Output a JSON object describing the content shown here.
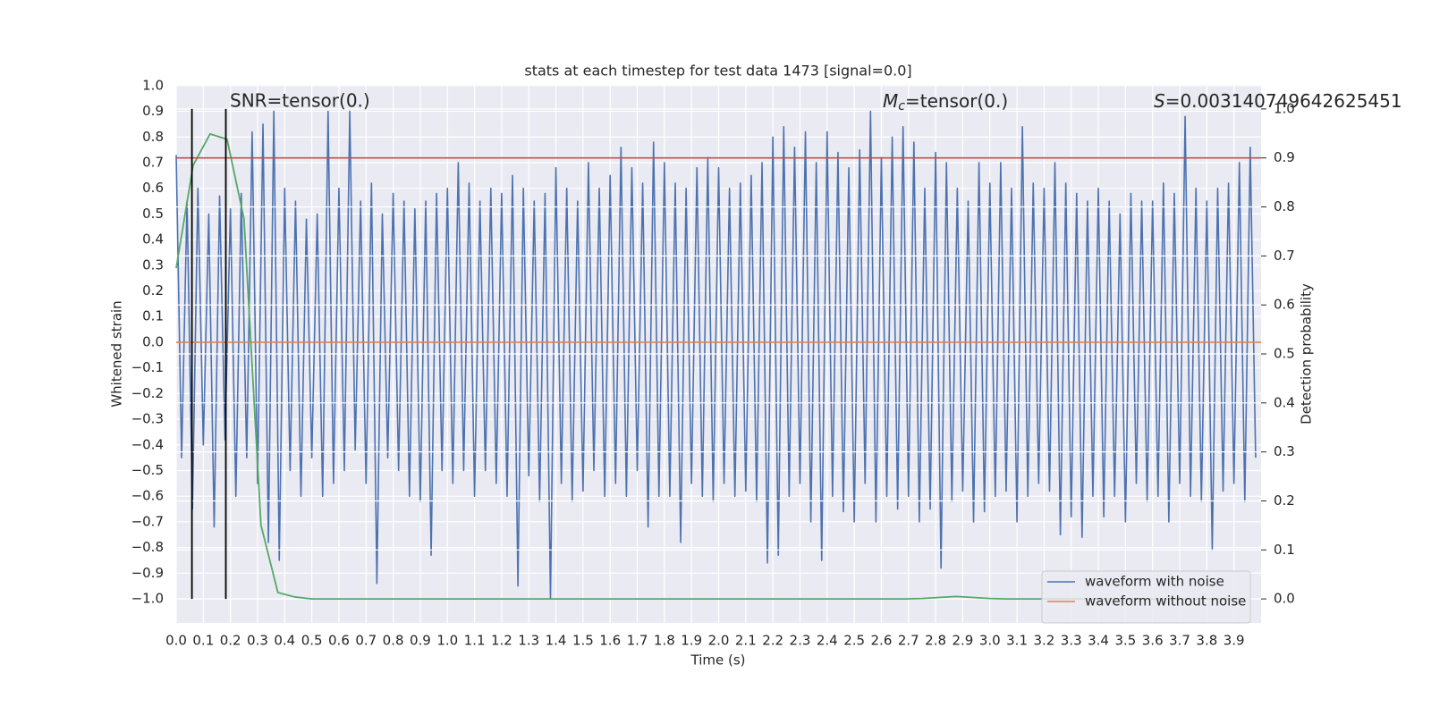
{
  "chart_data": {
    "type": "line",
    "title": "stats at each timestep for test data 1473 [signal=0.0]",
    "xlabel": "Time (s)",
    "ylabel": "Whitened strain",
    "y2label": "Detection probability",
    "grid": true,
    "legend": "lower right",
    "xlim": [
      0,
      4.0
    ],
    "ylim": [
      -1.094,
      1.003
    ],
    "y2lim": [
      -0.049,
      1.049
    ],
    "xticks": [
      {
        "value": 0,
        "label": "0.0"
      },
      {
        "value": 0.1,
        "label": "0.1"
      },
      {
        "value": 0.2,
        "label": "0.2"
      },
      {
        "value": 0.3,
        "label": "0.3"
      },
      {
        "value": 0.4,
        "label": "0.4"
      },
      {
        "value": 0.5,
        "label": "0.5"
      },
      {
        "value": 0.6,
        "label": "0.6"
      },
      {
        "value": 0.7,
        "label": "0.7"
      },
      {
        "value": 0.8,
        "label": "0.8"
      },
      {
        "value": 0.9,
        "label": "0.9"
      },
      {
        "value": 1,
        "label": "1.0"
      },
      {
        "value": 1.1,
        "label": "1.1"
      },
      {
        "value": 1.2,
        "label": "1.2"
      },
      {
        "value": 1.3,
        "label": "1.3"
      },
      {
        "value": 1.4,
        "label": "1.4"
      },
      {
        "value": 1.5,
        "label": "1.5"
      },
      {
        "value": 1.6,
        "label": "1.6"
      },
      {
        "value": 1.7,
        "label": "1.7"
      },
      {
        "value": 1.8,
        "label": "1.8"
      },
      {
        "value": 1.9,
        "label": "1.9"
      },
      {
        "value": 2,
        "label": "2.0"
      },
      {
        "value": 2.1,
        "label": "2.1"
      },
      {
        "value": 2.2,
        "label": "2.2"
      },
      {
        "value": 2.3,
        "label": "2.3"
      },
      {
        "value": 2.4,
        "label": "2.4"
      },
      {
        "value": 2.5,
        "label": "2.5"
      },
      {
        "value": 2.6,
        "label": "2.6"
      },
      {
        "value": 2.7,
        "label": "2.7"
      },
      {
        "value": 2.8,
        "label": "2.8"
      },
      {
        "value": 2.9,
        "label": "2.9"
      },
      {
        "value": 3,
        "label": "3.0"
      },
      {
        "value": 3.1,
        "label": "3.1"
      },
      {
        "value": 3.2,
        "label": "3.2"
      },
      {
        "value": 3.3,
        "label": "3.3"
      },
      {
        "value": 3.4,
        "label": "3.4"
      },
      {
        "value": 3.5,
        "label": "3.5"
      },
      {
        "value": 3.6,
        "label": "3.6"
      },
      {
        "value": 3.7,
        "label": "3.7"
      },
      {
        "value": 3.8,
        "label": "3.8"
      },
      {
        "value": 3.9,
        "label": "3.9"
      }
    ],
    "yticks": [
      {
        "value": -1,
        "label": "−1.0"
      },
      {
        "value": -0.9,
        "label": "−0.9"
      },
      {
        "value": -0.8,
        "label": "−0.8"
      },
      {
        "value": -0.7,
        "label": "−0.7"
      },
      {
        "value": -0.6,
        "label": "−0.6"
      },
      {
        "value": -0.5,
        "label": "−0.5"
      },
      {
        "value": -0.4,
        "label": "−0.4"
      },
      {
        "value": -0.3,
        "label": "−0.3"
      },
      {
        "value": -0.2,
        "label": "−0.2"
      },
      {
        "value": -0.1,
        "label": "−0.1"
      },
      {
        "value": 0,
        "label": "0.0"
      },
      {
        "value": 0.1,
        "label": "0.1"
      },
      {
        "value": 0.2,
        "label": "0.2"
      },
      {
        "value": 0.3,
        "label": "0.3"
      },
      {
        "value": 0.4,
        "label": "0.4"
      },
      {
        "value": 0.5,
        "label": "0.5"
      },
      {
        "value": 0.6,
        "label": "0.6"
      },
      {
        "value": 0.7,
        "label": "0.7"
      },
      {
        "value": 0.8,
        "label": "0.8"
      },
      {
        "value": 0.9,
        "label": "0.9"
      },
      {
        "value": 1,
        "label": "1.0"
      }
    ],
    "y2ticks": [
      {
        "value": 0,
        "label": "0.0"
      },
      {
        "value": 0.1,
        "label": "0.1"
      },
      {
        "value": 0.2,
        "label": "0.2"
      },
      {
        "value": 0.3,
        "label": "0.3"
      },
      {
        "value": 0.4,
        "label": "0.4"
      },
      {
        "value": 0.5,
        "label": "0.5"
      },
      {
        "value": 0.6,
        "label": "0.6"
      },
      {
        "value": 0.7,
        "label": "0.7"
      },
      {
        "value": 0.8,
        "label": "0.8"
      },
      {
        "value": 0.9,
        "label": "0.9"
      },
      {
        "value": 1,
        "label": "1.0"
      }
    ],
    "series": [
      {
        "name": "waveform with noise",
        "color": "#4c72b0",
        "x": [
          0,
          0.02,
          0.04,
          0.06,
          0.08,
          0.1,
          0.12,
          0.14,
          0.16,
          0.18,
          0.2,
          0.22,
          0.24,
          0.26,
          0.28,
          0.3,
          0.32,
          0.34,
          0.36,
          0.38,
          0.4,
          0.42,
          0.44,
          0.46,
          0.48,
          0.5,
          0.52,
          0.54,
          0.56,
          0.58,
          0.6,
          0.62,
          0.64,
          0.66,
          0.68,
          0.7,
          0.72,
          0.74,
          0.76,
          0.78,
          0.8,
          0.82,
          0.84,
          0.86,
          0.88,
          0.9,
          0.92,
          0.94,
          0.96,
          0.98,
          1,
          1.02,
          1.04,
          1.06,
          1.08,
          1.1,
          1.12,
          1.14,
          1.16,
          1.18,
          1.2,
          1.22,
          1.24,
          1.26,
          1.28,
          1.3,
          1.32,
          1.34,
          1.36,
          1.38,
          1.4,
          1.42,
          1.44,
          1.46,
          1.48,
          1.5,
          1.52,
          1.54,
          1.56,
          1.58,
          1.6,
          1.62,
          1.64,
          1.66,
          1.68,
          1.7,
          1.72,
          1.74,
          1.76,
          1.78,
          1.8,
          1.82,
          1.84,
          1.86,
          1.88,
          1.9,
          1.92,
          1.94,
          1.96,
          1.98,
          2,
          2.02,
          2.04,
          2.06,
          2.08,
          2.1,
          2.12,
          2.14,
          2.16,
          2.18,
          2.2,
          2.22,
          2.24,
          2.26,
          2.28,
          2.3,
          2.32,
          2.34,
          2.36,
          2.38,
          2.4,
          2.42,
          2.44,
          2.46,
          2.48,
          2.5,
          2.52,
          2.54,
          2.56,
          2.58,
          2.6,
          2.62,
          2.64,
          2.66,
          2.68,
          2.7,
          2.72,
          2.74,
          2.76,
          2.78,
          2.8,
          2.82,
          2.84,
          2.86,
          2.88,
          2.9,
          2.92,
          2.94,
          2.96,
          2.98,
          3,
          3.02,
          3.04,
          3.06,
          3.08,
          3.1,
          3.12,
          3.14,
          3.16,
          3.18,
          3.2,
          3.22,
          3.24,
          3.26,
          3.28,
          3.3,
          3.32,
          3.34,
          3.36,
          3.38,
          3.4,
          3.42,
          3.44,
          3.46,
          3.48,
          3.5,
          3.52,
          3.54,
          3.56,
          3.58,
          3.6,
          3.62,
          3.64,
          3.66,
          3.68,
          3.7,
          3.72,
          3.74,
          3.76,
          3.78,
          3.8,
          3.82,
          3.84,
          3.86,
          3.88,
          3.9,
          3.92,
          3.94,
          3.96,
          3.98
        ],
        "values": [
          0.73,
          -0.45,
          0.55,
          -0.65,
          0.6,
          -0.4,
          0.5,
          -0.72,
          0.57,
          -0.38,
          0.52,
          -0.6,
          0.58,
          -0.45,
          0.82,
          -0.55,
          0.85,
          -0.78,
          0.9,
          -0.85,
          0.6,
          -0.5,
          0.55,
          -0.6,
          0.48,
          -0.45,
          0.5,
          -0.6,
          0.9,
          -0.55,
          0.6,
          -0.5,
          0.9,
          -0.42,
          0.55,
          -0.55,
          0.62,
          -0.94,
          0.5,
          -0.45,
          0.58,
          -0.5,
          0.55,
          -0.6,
          0.52,
          -0.62,
          0.55,
          -0.83,
          0.58,
          -0.5,
          0.6,
          -0.55,
          0.7,
          -0.5,
          0.62,
          -0.6,
          0.55,
          -0.5,
          0.6,
          -0.55,
          0.58,
          -0.6,
          0.65,
          -0.95,
          0.6,
          -0.52,
          0.55,
          -0.62,
          0.58,
          -1.0,
          0.68,
          -0.55,
          0.6,
          -0.62,
          0.55,
          -0.58,
          0.7,
          -0.5,
          0.6,
          -0.6,
          0.65,
          -0.55,
          0.76,
          -0.6,
          0.68,
          -0.5,
          0.62,
          -0.72,
          0.78,
          -0.6,
          0.7,
          -0.6,
          0.62,
          -0.78,
          0.6,
          -0.55,
          0.68,
          -0.6,
          0.72,
          -0.62,
          0.68,
          -0.55,
          0.6,
          -0.6,
          0.62,
          -0.58,
          0.65,
          -0.62,
          0.7,
          -0.86,
          0.8,
          -0.83,
          0.84,
          -0.6,
          0.76,
          -0.55,
          0.82,
          -0.7,
          0.7,
          -0.85,
          0.82,
          -0.6,
          0.74,
          -0.66,
          0.68,
          -0.7,
          0.75,
          -0.55,
          0.9,
          -0.7,
          0.72,
          -0.6,
          0.8,
          -0.65,
          0.84,
          -0.6,
          0.78,
          -0.7,
          0.6,
          -0.65,
          0.74,
          -0.88,
          0.7,
          -0.62,
          0.6,
          -0.58,
          0.55,
          -0.7,
          0.7,
          -0.66,
          0.62,
          -0.6,
          0.7,
          -0.58,
          0.6,
          -0.7,
          0.84,
          -0.6,
          0.62,
          -0.55,
          0.6,
          -0.58,
          0.7,
          -0.75,
          0.62,
          -0.68,
          0.58,
          -0.76,
          0.55,
          -0.6,
          0.6,
          -0.68,
          0.55,
          -0.6,
          0.5,
          -0.7,
          0.58,
          -0.55,
          0.55,
          -0.62,
          0.55,
          -0.6,
          0.62,
          -0.7,
          0.58,
          -0.55,
          0.88,
          -0.6,
          0.6,
          -0.62,
          0.55,
          -0.81,
          0.6,
          -0.58,
          0.62,
          -0.55,
          0.7,
          -0.62,
          0.76,
          -0.45
        ]
      },
      {
        "name": "waveform without noise",
        "color": "#dd8452",
        "x": [
          0,
          4.0
        ],
        "values": [
          0,
          0
        ]
      }
    ],
    "probability": {
      "color": "#55a868",
      "axis": "y2",
      "x": [
        0,
        0.0625,
        0.125,
        0.1875,
        0.25,
        0.3125,
        0.375,
        0.4375,
        0.5,
        0.5625,
        0.625,
        0.6875,
        0.75,
        0.8125,
        0.875,
        0.9375,
        1,
        1.0625,
        1.125,
        1.1875,
        1.25,
        1.3125,
        1.375,
        1.4375,
        1.5,
        1.5625,
        1.625,
        1.6875,
        1.75,
        1.8125,
        1.875,
        1.9375,
        2,
        2.0625,
        2.125,
        2.1875,
        2.25,
        2.3125,
        2.375,
        2.4375,
        2.5,
        2.5625,
        2.625,
        2.6875,
        2.75,
        2.8125,
        2.875,
        2.9375,
        3,
        3.0625,
        3.125,
        3.1875,
        3.25,
        3.3125,
        3.375,
        3.4375,
        3.5,
        3.5625,
        3.625,
        3.6875,
        3.75,
        3.8125,
        3.875,
        3.9375
      ],
      "values": [
        0.675,
        0.885,
        0.949,
        0.938,
        0.776,
        0.151,
        0.013,
        0.004,
        0,
        0,
        0,
        0,
        0,
        0,
        0,
        0,
        0,
        0,
        0,
        0,
        0,
        0,
        0,
        0,
        0,
        0,
        0,
        0,
        0,
        0,
        0,
        0,
        0,
        0,
        0,
        0,
        0,
        0,
        0,
        0,
        0,
        0,
        0,
        0,
        0.001,
        0.003,
        0.005,
        0.003,
        0.001,
        0,
        0,
        0,
        0,
        0,
        0,
        0,
        0,
        0,
        0,
        0,
        0,
        0,
        0,
        0
      ]
    },
    "threshold": {
      "value": 0.9,
      "axis": "y2",
      "color": "#c44e52"
    },
    "vlines": {
      "x": [
        0.058,
        0.183
      ],
      "ymin": 0,
      "ymax": 1,
      "axis": "y2",
      "color": "#000000"
    },
    "snr_label": "SNR=tensor(0.)",
    "mc_label": {
      "symbol": "M",
      "subscript": "c",
      "text": "=tensor(0.)"
    },
    "s_label": {
      "symbol": "S",
      "text": "=0.003140749642625451"
    }
  }
}
